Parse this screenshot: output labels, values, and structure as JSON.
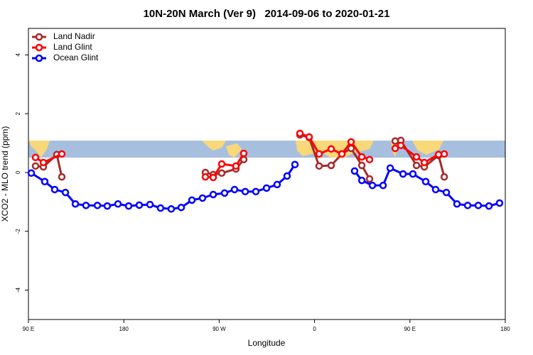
{
  "chart_data": {
    "type": "line",
    "title": "10N-20N March (Ver 9)   2014-09-06 to 2020-01-21",
    "x_label": "Longitude",
    "y_label": "XCO2 - MLO trend (ppm)",
    "xlim": [
      90,
      540
    ],
    "ylim": [
      -5,
      4.9
    ],
    "xticks": [
      {
        "value": 90,
        "label": "90 E"
      },
      180,
      {
        "value": 270,
        "label": "90 W"
      },
      {
        "value": 360,
        "label": "0"
      },
      {
        "value": 450,
        "label": "90 E"
      },
      {
        "value": 540,
        "label": "180"
      }
    ],
    "yticks": [
      -4,
      -2,
      0,
      2,
      4
    ],
    "legend": "top-left",
    "series": [
      {
        "name": "Land Nadir",
        "color": "#a52a2a",
        "x": [
          96.7,
          104.1,
          116.8,
          121.5,
          null,
          257.0,
          264.4,
          272.4,
          285.8,
          293.2,
          null,
          346.2,
          354.9,
          364.3,
          375.7,
          385.8,
          394.5,
          404.6,
          411.9,
          null,
          436.1,
          441.4,
          456.2,
          463.6,
          477.0,
          482.4
        ],
        "values": [
          0.22,
          0.19,
          0.61,
          -0.15,
          null,
          0.0,
          -0.07,
          -0.02,
          0.12,
          0.44,
          null,
          1.28,
          1.19,
          0.22,
          0.24,
          0.63,
          0.82,
          0.24,
          -0.22,
          null,
          1.07,
          1.09,
          0.24,
          0.19,
          0.58,
          -0.15
        ]
      },
      {
        "name": "Land Glint",
        "color": "#ff0000",
        "x": [
          96.7,
          104.1,
          121.5,
          null,
          257.0,
          264.4,
          272.4,
          285.8,
          293.2,
          null,
          346.2,
          354.9,
          364.3,
          375.7,
          385.8,
          394.5,
          404.6,
          411.9,
          null,
          436.1,
          441.4,
          456.2,
          463.6,
          477.0,
          482.4
        ],
        "values": [
          0.51,
          0.34,
          0.63,
          null,
          -0.15,
          -0.17,
          0.29,
          0.22,
          0.65,
          null,
          1.33,
          1.21,
          0.63,
          0.8,
          0.63,
          1.04,
          0.53,
          0.44,
          null,
          0.82,
          0.92,
          0.53,
          0.34,
          0.61,
          0.63
        ]
      },
      {
        "name": "Ocean Glint",
        "color": "#0000ff",
        "x": [
          92.7,
          105.4,
          114.8,
          124.9,
          134.3,
          144.3,
          155.1,
          164.4,
          174.5,
          184.6,
          194.6,
          204.7,
          214.7,
          224.8,
          234.2,
          244.3,
          254.3,
          264.4,
          275.1,
          284.5,
          294.6,
          304.6,
          314.7,
          324.7,
          334.1,
          341.5,
          null,
          397.8,
          404.6,
          414.6,
          424.7,
          431.4,
          443.5,
          452.8,
          464.9,
          474.3,
          484.4,
          494.4,
          504.5,
          514.5,
          524.6,
          534.6
        ],
        "values": [
          -0.02,
          -0.31,
          -0.58,
          -0.68,
          -1.07,
          -1.12,
          -1.12,
          -1.14,
          -1.07,
          -1.14,
          -1.11,
          -1.09,
          -1.21,
          -1.24,
          -1.19,
          -0.94,
          -0.87,
          -0.75,
          -0.7,
          -0.58,
          -0.65,
          -0.65,
          -0.53,
          -0.41,
          -0.12,
          0.27,
          null,
          0.05,
          -0.27,
          -0.44,
          -0.44,
          0.15,
          -0.05,
          -0.05,
          -0.31,
          -0.58,
          -0.68,
          -1.07,
          -1.12,
          -1.12,
          -1.14,
          -1.04
        ]
      }
    ]
  }
}
